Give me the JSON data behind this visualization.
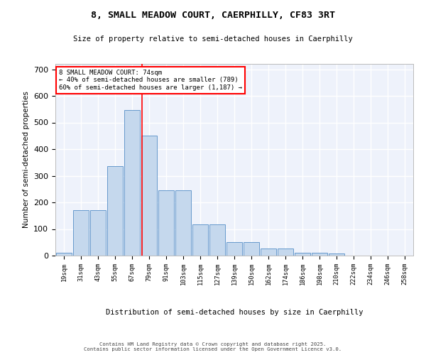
{
  "title1": "8, SMALL MEADOW COURT, CAERPHILLY, CF83 3RT",
  "title2": "Size of property relative to semi-detached houses in Caerphilly",
  "xlabel": "Distribution of semi-detached houses by size in Caerphilly",
  "ylabel": "Number of semi-detached properties",
  "categories": [
    "19sqm",
    "31sqm",
    "43sqm",
    "55sqm",
    "67sqm",
    "79sqm",
    "91sqm",
    "103sqm",
    "115sqm",
    "127sqm",
    "139sqm",
    "150sqm",
    "162sqm",
    "174sqm",
    "186sqm",
    "198sqm",
    "210sqm",
    "222sqm",
    "234sqm",
    "246sqm",
    "258sqm"
  ],
  "bar_heights": [
    10,
    170,
    170,
    335,
    548,
    450,
    245,
    245,
    118,
    118,
    52,
    52,
    27,
    27,
    12,
    12,
    8,
    0,
    0,
    0,
    0
  ],
  "bar_color": "#c5d8ed",
  "bar_edge_color": "#6699cc",
  "background_color": "#eef2fb",
  "grid_color": "#ffffff",
  "vline_color": "red",
  "vline_pos": 4.6,
  "annotation_title": "8 SMALL MEADOW COURT: 74sqm",
  "annotation_line1": "← 40% of semi-detached houses are smaller (789)",
  "annotation_line2": "60% of semi-detached houses are larger (1,187) →",
  "annotation_box_color": "white",
  "annotation_box_edge": "red",
  "footer1": "Contains HM Land Registry data © Crown copyright and database right 2025.",
  "footer2": "Contains public sector information licensed under the Open Government Licence v3.0.",
  "ylim": [
    0,
    720
  ],
  "yticks": [
    0,
    100,
    200,
    300,
    400,
    500,
    600,
    700
  ]
}
